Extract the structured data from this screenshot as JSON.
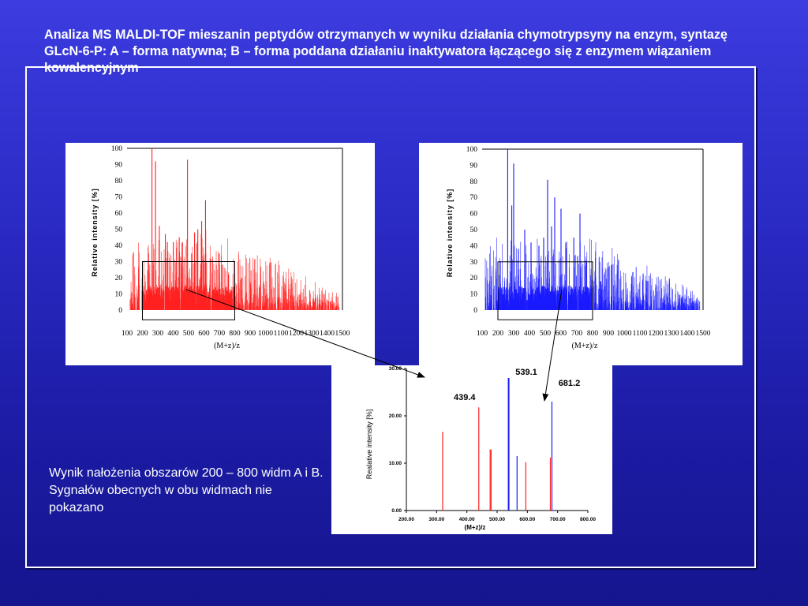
{
  "slide": {
    "title": "Analiza MS MALDI-TOF mieszanin peptydów otrzymanych w wyniku działania chymotrypsyny na enzym, syntazę GLcN-6-P: A – forma natywna; B – forma poddana działaniu inaktywatora łączącego się z enzymem wiązaniem kowalencyjnym",
    "caption": "Wynik nałożenia obszarów 200 – 800 widm A i B. Sygnałów obecnych w obu widmach nie pokazano",
    "colors": {
      "background": "#2b2bc6",
      "spectrum_a": "#ff2020",
      "spectrum_b": "#1a1aff",
      "frame": "#ffffff"
    }
  },
  "chart_data": [
    {
      "id": "A",
      "type": "bar",
      "style": "mass-spectrum",
      "color": "#ff2020",
      "xlabel": "(M+z)/z",
      "ylabel": "Relative intensity [%]",
      "xlim": [
        100,
        1500
      ],
      "ylim": [
        0,
        100
      ],
      "xticks": [
        100,
        200,
        300,
        400,
        500,
        600,
        700,
        800,
        900,
        1000,
        1100,
        1200,
        1300,
        1400,
        1500
      ],
      "yticks": [
        0,
        10,
        20,
        30,
        40,
        50,
        60,
        70,
        80,
        90,
        100
      ],
      "highlight_region": {
        "x": [
          200,
          800
        ],
        "y": [
          0,
          30
        ]
      },
      "x": [
        262,
        285,
        310,
        349,
        362,
        401,
        439,
        460,
        493,
        520,
        539,
        560,
        585,
        610,
        640,
        680,
        700,
        720,
        760,
        800,
        845,
        900,
        960,
        1010,
        1080
      ],
      "values": [
        100,
        92,
        52,
        47,
        42,
        42,
        45,
        42,
        93,
        35,
        48,
        50,
        55,
        68,
        32,
        28,
        35,
        28,
        22,
        23,
        20,
        15,
        14,
        10,
        8
      ]
    },
    {
      "id": "B",
      "type": "bar",
      "style": "mass-spectrum",
      "color": "#1a1aff",
      "xlabel": "(M+z)/z",
      "ylabel": "Relative intensity [%]",
      "xlim": [
        100,
        1500
      ],
      "ylim": [
        0,
        100
      ],
      "xticks": [
        100,
        200,
        300,
        400,
        500,
        600,
        700,
        800,
        900,
        1000,
        1100,
        1200,
        1300,
        1400,
        1500
      ],
      "yticks": [
        0,
        10,
        20,
        30,
        40,
        50,
        60,
        70,
        80,
        90,
        100
      ],
      "highlight_region": {
        "x": [
          200,
          800
        ],
        "y": [
          0,
          30
        ]
      },
      "x": [
        262,
        288,
        300,
        330,
        370,
        410,
        460,
        490,
        515,
        540,
        560,
        600,
        630,
        681,
        720,
        760,
        800,
        850,
        880,
        920,
        980,
        1020,
        1150,
        1250
      ],
      "values": [
        100,
        65,
        91,
        38,
        50,
        42,
        40,
        45,
        81,
        52,
        70,
        63,
        42,
        45,
        60,
        30,
        22,
        18,
        15,
        28,
        12,
        10,
        18,
        8
      ]
    },
    {
      "id": "overlay",
      "type": "bar",
      "style": "mass-spectrum",
      "xlabel": "(M+z)/z",
      "ylabel": "Realative intensity [%]",
      "xlim": [
        200,
        800
      ],
      "ylim": [
        0,
        30
      ],
      "xticks": [
        "200.00",
        "300.00",
        "400.00",
        "500.00",
        "600.00",
        "700.00",
        "800.00"
      ],
      "yticks": [
        "0.00",
        "10.00",
        "20.00",
        "30.00"
      ],
      "series": [
        {
          "id": "A",
          "color": "#ff2020",
          "x": [
            320,
            439.4,
            477,
            480,
            595,
            676
          ],
          "values": [
            16.6,
            21.8,
            12.9,
            12.9,
            10.2,
            11.2
          ]
        },
        {
          "id": "B",
          "color": "#1a1aff",
          "x": [
            537,
            539.1,
            566,
            681.2
          ],
          "values": [
            28.0,
            28.0,
            11.5,
            23.0
          ]
        }
      ],
      "annotations": [
        {
          "text": "439.4",
          "x": 439.4
        },
        {
          "text": "539.1",
          "x": 539.1
        },
        {
          "text": "681.2",
          "x": 681.2
        }
      ]
    }
  ]
}
